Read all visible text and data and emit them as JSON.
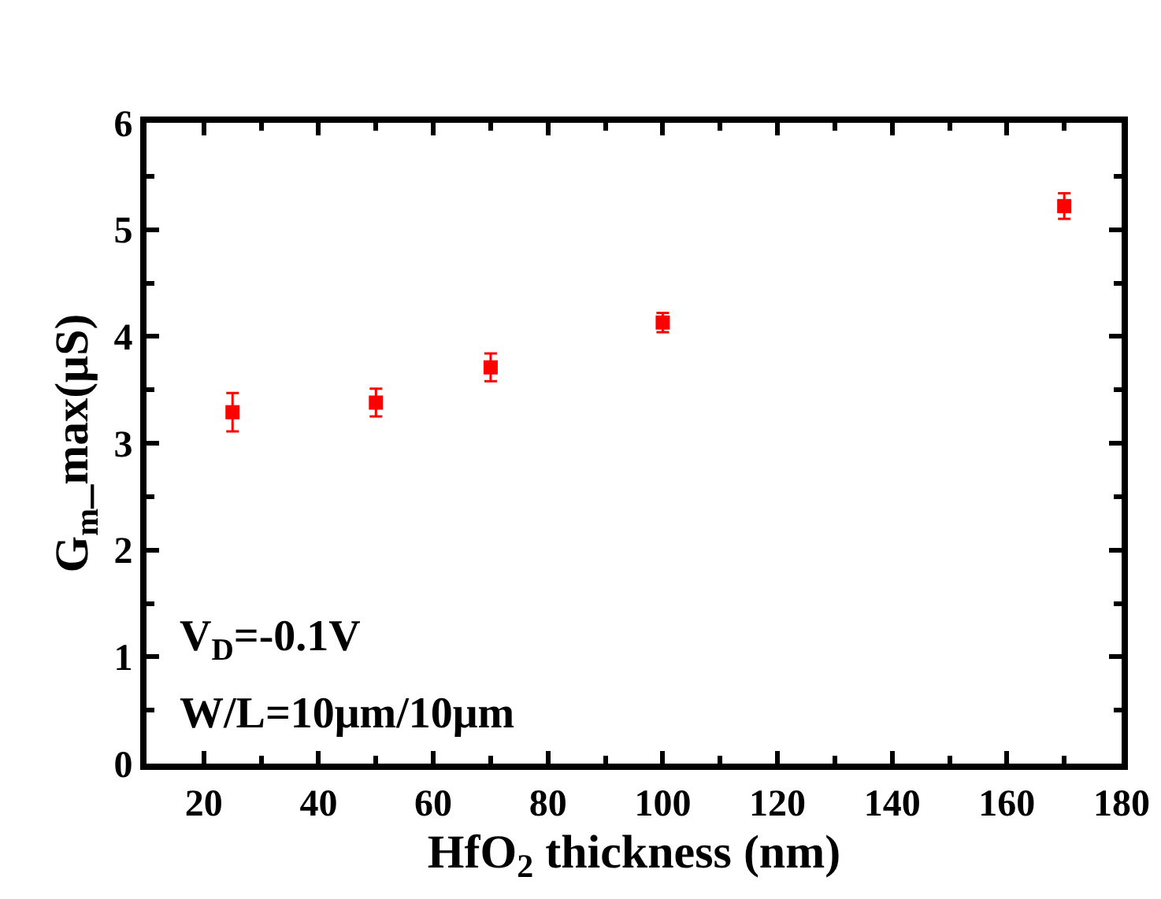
{
  "chart_data": {
    "type": "scatter",
    "xlabel": "HfO$_{2}$ thickness (nm)",
    "ylabel": "G$_{m}$_max(μS)",
    "x": [
      25,
      50,
      70,
      100,
      170
    ],
    "series": [
      {
        "color": "#ff0000",
        "values": [
          3.29,
          3.38,
          3.71,
          4.13,
          5.22
        ],
        "errors": [
          0.18,
          0.13,
          0.13,
          0.09,
          0.12
        ]
      }
    ],
    "xlim": [
      10,
      180
    ],
    "xticks": [
      20,
      40,
      60,
      80,
      100,
      120,
      140,
      160,
      180
    ],
    "ylim": [
      0,
      6
    ],
    "yticks": [
      0,
      1,
      2,
      3,
      4,
      5,
      6
    ],
    "grid": false,
    "marker": "square",
    "annotations": [
      "V$_{D}$=-0.1V",
      "W/L=10μm/10μm"
    ]
  }
}
